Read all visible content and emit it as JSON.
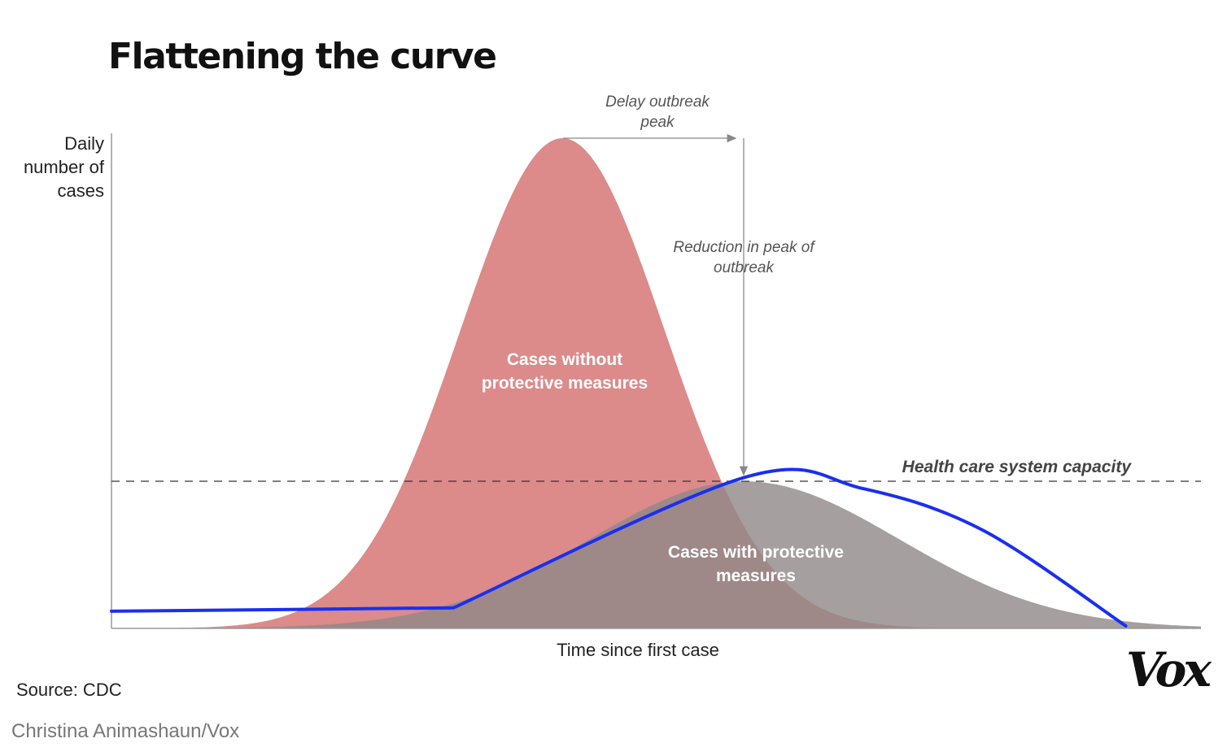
{
  "chart_data": {
    "type": "area",
    "title": "Flattening the curve",
    "ylabel": "Daily number of cases",
    "xlabel": "Time since first case",
    "xlim": [
      0,
      100
    ],
    "ylim": [
      0,
      100
    ],
    "series": [
      {
        "name": "Cases without protective measures",
        "color": "#dc8a8a",
        "mean": 41.4,
        "sd": 9.4,
        "peak": 100
      },
      {
        "name": "Cases with protective measures",
        "color": "#8f8787",
        "mean": 58.1,
        "sd": 14.2,
        "peak": 30
      }
    ],
    "capacity": {
      "label": "Health care system capacity",
      "value": 30
    },
    "capacity_curve": {
      "color": "#1a2ff0",
      "points": [
        [
          0,
          3.5
        ],
        [
          31.4,
          4.2
        ],
        [
          58.1,
          30.8
        ],
        [
          69,
          28.5
        ],
        [
          80,
          20
        ],
        [
          93.1,
          0.5
        ]
      ]
    },
    "annotations": {
      "delay": "Delay outbreak peak",
      "reduction": "Reduction in peak of outbreak"
    },
    "grid": false
  },
  "source": "Source: CDC",
  "credit": "Christina Animashaun/Vox",
  "logo": "Vox"
}
